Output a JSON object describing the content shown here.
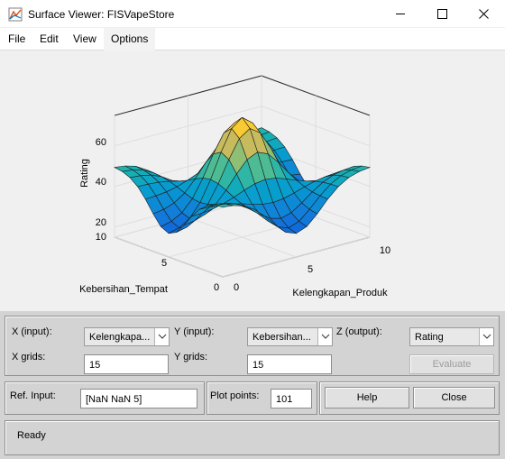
{
  "window": {
    "title": "Surface Viewer: FISVapeStore"
  },
  "menu": {
    "items": [
      "File",
      "Edit",
      "View",
      "Options"
    ]
  },
  "plot": {
    "zlabel": "Rating",
    "xlabel": "Kelengkapan_Produk",
    "ylabel": "Kebersihan_Tempat",
    "zticks": [
      "20",
      "40",
      "60"
    ],
    "xticks": [
      "0",
      "5",
      "10"
    ],
    "yticks": [
      "0",
      "5",
      "10"
    ],
    "colormap": "parula"
  },
  "controls": {
    "x_input_label": "X (input):",
    "x_input_value": "Kelengkapa...",
    "y_input_label": "Y (input):",
    "y_input_value": "Kebersihan...",
    "z_output_label": "Z (output):",
    "z_output_value": "Rating",
    "x_grids_label": "X grids:",
    "x_grids_value": "15",
    "y_grids_label": "Y grids:",
    "y_grids_value": "15",
    "evaluate_label": "Evaluate",
    "ref_input_label": "Ref. Input:",
    "ref_input_value": "[NaN NaN 5]",
    "plot_points_label": "Plot points:",
    "plot_points_value": "101",
    "help_label": "Help",
    "close_label": "Close"
  },
  "status": {
    "text": "Ready"
  },
  "chart_data": {
    "type": "surface",
    "x": [
      0,
      0.714,
      1.429,
      2.143,
      2.857,
      3.571,
      4.286,
      5,
      5.714,
      6.429,
      7.143,
      7.857,
      8.571,
      9.286,
      10
    ],
    "y": [
      0,
      0.714,
      1.429,
      2.143,
      2.857,
      3.571,
      4.286,
      5,
      5.714,
      6.429,
      7.143,
      7.857,
      8.571,
      9.286,
      10
    ],
    "z_range": [
      15,
      75
    ],
    "z_formula": "approx 50 + 20*(gx*gy - (1-gx)*(1-gy)), gx,gy = bell around each axis midpoint",
    "zlim": [
      15,
      75
    ],
    "xlim": [
      0,
      10
    ],
    "ylim": [
      0,
      10
    ]
  }
}
